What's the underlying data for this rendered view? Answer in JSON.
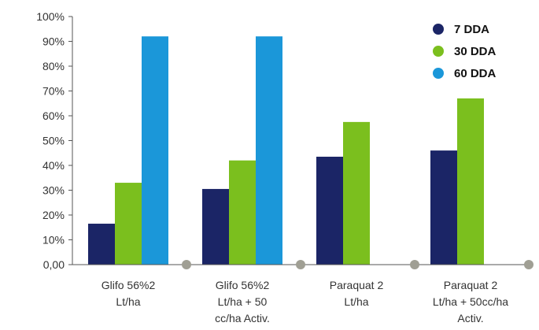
{
  "chart_data": {
    "type": "bar",
    "title": "",
    "xlabel": "",
    "ylabel": "",
    "ylim": [
      0,
      100
    ],
    "yticks": [
      {
        "value": 0,
        "label": "0,00"
      },
      {
        "value": 10,
        "label": "10%"
      },
      {
        "value": 20,
        "label": "20%"
      },
      {
        "value": 30,
        "label": "30%"
      },
      {
        "value": 40,
        "label": "40%"
      },
      {
        "value": 50,
        "label": "50%"
      },
      {
        "value": 60,
        "label": "60%"
      },
      {
        "value": 70,
        "label": "70%"
      },
      {
        "value": 80,
        "label": "80%"
      },
      {
        "value": 90,
        "label": "90%"
      },
      {
        "value": 100,
        "label": "100%"
      }
    ],
    "categories": [
      [
        "Glifo 56%2",
        "Lt/ha"
      ],
      [
        "Glifo 56%2",
        "Lt/ha + 50",
        "cc/ha Activ."
      ],
      [
        "Paraquat 2",
        "Lt/ha"
      ],
      [
        "Paraquat 2",
        "Lt/ha + 50cc/ha",
        "Activ."
      ]
    ],
    "series": [
      {
        "name": "7 DDA",
        "color": "#1b2566",
        "values": [
          16.5,
          30.5,
          43.5,
          46
        ]
      },
      {
        "name": "30 DDA",
        "color": "#7bbf1e",
        "values": [
          33,
          42,
          57.5,
          67
        ]
      },
      {
        "name": "60 DDA",
        "color": "#1b97d9",
        "values": [
          92,
          92,
          null,
          null
        ]
      }
    ],
    "grid": false,
    "legend_position": "top-right",
    "axis_marker_color": "#a09f94"
  }
}
